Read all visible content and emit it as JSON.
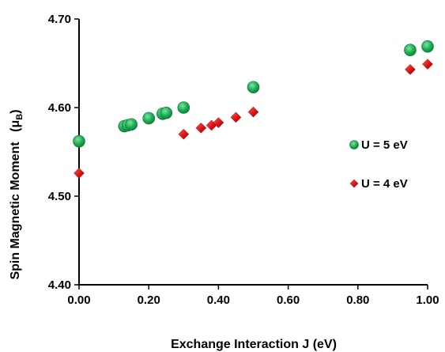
{
  "chart_data": {
    "type": "scatter",
    "title": "",
    "xlabel": "Exchange Interaction J (eV)",
    "ylabel": "Spin Magnetic Moment",
    "ylabel_unit": "(μ",
    "ylabel_unit_sub": "B",
    "ylabel_unit_close": ")",
    "xlim": [
      0,
      1
    ],
    "ylim": [
      4.4,
      4.7
    ],
    "x_ticks": [
      0,
      0.2,
      0.4,
      0.6,
      0.8,
      1.0
    ],
    "x_tick_labels": [
      "0.00",
      "0.20",
      "0.40",
      "0.60",
      "0.80",
      "1.00"
    ],
    "y_ticks": [
      4.4,
      4.5,
      4.6,
      4.7
    ],
    "y_tick_labels": [
      "4.40",
      "4.50",
      "4.60",
      "4.70"
    ],
    "grid": false,
    "legend_position": "right",
    "series": [
      {
        "name": "U = 5 eV",
        "color": "#1a9e4a",
        "marker": "circle",
        "x": [
          0.0,
          0.13,
          0.14,
          0.15,
          0.2,
          0.24,
          0.25,
          0.3,
          0.5,
          0.95,
          1.0
        ],
        "y": [
          4.562,
          4.579,
          4.58,
          4.581,
          4.588,
          4.593,
          4.594,
          4.6,
          4.623,
          4.665,
          4.669
        ]
      },
      {
        "name": "U = 4 eV",
        "color": "#e01010",
        "marker": "diamond",
        "x": [
          0.0,
          0.3,
          0.35,
          0.38,
          0.4,
          0.45,
          0.5,
          0.95,
          1.0
        ],
        "y": [
          4.526,
          4.57,
          4.577,
          4.58,
          4.583,
          4.589,
          4.595,
          4.643,
          4.649
        ]
      }
    ]
  }
}
